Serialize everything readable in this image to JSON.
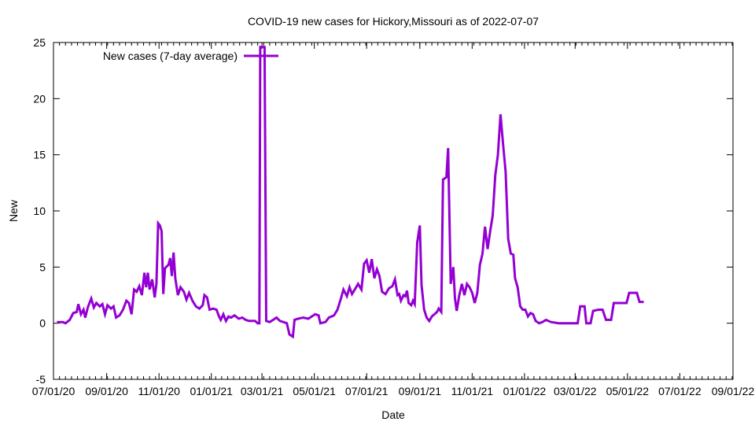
{
  "chart_data": {
    "type": "line",
    "title": "COVID-19 new cases for Hickory,Missouri as of 2022-07-07",
    "xlabel": "Date",
    "ylabel": "New",
    "xlim": [
      "2020-07-01",
      "2022-09-01"
    ],
    "ylim": [
      -5,
      25
    ],
    "x_ticks": [
      "07/01/20",
      "09/01/20",
      "11/01/20",
      "01/01/21",
      "03/01/21",
      "05/01/21",
      "07/01/21",
      "09/01/21",
      "11/01/21",
      "01/01/22",
      "03/01/22",
      "05/01/22",
      "07/01/22",
      "09/01/22"
    ],
    "y_ticks": [
      -5,
      0,
      5,
      10,
      15,
      20,
      25
    ],
    "legend_position": "top-left",
    "grid": false,
    "series": [
      {
        "name": "New cases (7-day average)",
        "color": "#9400d3",
        "points": [
          [
            "2020-07-05",
            0.1
          ],
          [
            "2020-07-12",
            0.1
          ],
          [
            "2020-07-15",
            0.0
          ],
          [
            "2020-07-20",
            0.3
          ],
          [
            "2020-07-24",
            0.9
          ],
          [
            "2020-07-28",
            1.0
          ],
          [
            "2020-07-30",
            1.7
          ],
          [
            "2020-08-02",
            0.8
          ],
          [
            "2020-08-05",
            1.2
          ],
          [
            "2020-08-07",
            0.5
          ],
          [
            "2020-08-10",
            1.4
          ],
          [
            "2020-08-14",
            2.2
          ],
          [
            "2020-08-17",
            1.4
          ],
          [
            "2020-08-20",
            1.8
          ],
          [
            "2020-08-24",
            1.5
          ],
          [
            "2020-08-27",
            1.7
          ],
          [
            "2020-08-30",
            0.8
          ],
          [
            "2020-09-02",
            1.6
          ],
          [
            "2020-09-06",
            1.3
          ],
          [
            "2020-09-09",
            1.5
          ],
          [
            "2020-09-12",
            0.5
          ],
          [
            "2020-09-16",
            0.7
          ],
          [
            "2020-09-20",
            1.2
          ],
          [
            "2020-09-24",
            2.0
          ],
          [
            "2020-09-27",
            1.8
          ],
          [
            "2020-09-30",
            0.8
          ],
          [
            "2020-10-03",
            3.0
          ],
          [
            "2020-10-06",
            2.8
          ],
          [
            "2020-10-09",
            3.3
          ],
          [
            "2020-10-12",
            2.5
          ],
          [
            "2020-10-15",
            4.5
          ],
          [
            "2020-10-17",
            3.2
          ],
          [
            "2020-10-19",
            4.5
          ],
          [
            "2020-10-21",
            3.0
          ],
          [
            "2020-10-24",
            3.9
          ],
          [
            "2020-10-27",
            2.3
          ],
          [
            "2020-10-29",
            3.5
          ],
          [
            "2020-10-31",
            8.9
          ],
          [
            "2020-11-02",
            8.7
          ],
          [
            "2020-11-04",
            8.2
          ],
          [
            "2020-11-06",
            2.6
          ],
          [
            "2020-11-08",
            4.9
          ],
          [
            "2020-11-12",
            5.2
          ],
          [
            "2020-11-14",
            5.8
          ],
          [
            "2020-11-16",
            4.2
          ],
          [
            "2020-11-18",
            6.3
          ],
          [
            "2020-11-20",
            4.0
          ],
          [
            "2020-11-23",
            2.5
          ],
          [
            "2020-11-26",
            3.2
          ],
          [
            "2020-11-30",
            2.8
          ],
          [
            "2020-12-03",
            2.1
          ],
          [
            "2020-12-06",
            2.7
          ],
          [
            "2020-12-10",
            2.0
          ],
          [
            "2020-12-14",
            1.5
          ],
          [
            "2020-12-18",
            1.3
          ],
          [
            "2020-12-22",
            1.6
          ],
          [
            "2020-12-24",
            2.5
          ],
          [
            "2020-12-27",
            2.3
          ],
          [
            "2020-12-30",
            1.2
          ],
          [
            "2021-01-03",
            1.3
          ],
          [
            "2021-01-07",
            1.2
          ],
          [
            "2021-01-10",
            0.6
          ],
          [
            "2021-01-12",
            0.3
          ],
          [
            "2021-01-15",
            0.8
          ],
          [
            "2021-01-18",
            0.2
          ],
          [
            "2021-01-21",
            0.6
          ],
          [
            "2021-01-24",
            0.5
          ],
          [
            "2021-01-28",
            0.7
          ],
          [
            "2021-02-02",
            0.4
          ],
          [
            "2021-02-06",
            0.5
          ],
          [
            "2021-02-10",
            0.3
          ],
          [
            "2021-02-14",
            0.2
          ],
          [
            "2021-02-18",
            0.2
          ],
          [
            "2021-02-21",
            0.2
          ],
          [
            "2021-02-24",
            0.0
          ],
          [
            "2021-02-26",
            0.0
          ],
          [
            "2021-02-27",
            24.6
          ],
          [
            "2021-03-04",
            24.6
          ],
          [
            "2021-03-06",
            0.2
          ],
          [
            "2021-03-10",
            0.1
          ],
          [
            "2021-03-14",
            0.3
          ],
          [
            "2021-03-18",
            0.5
          ],
          [
            "2021-03-22",
            0.2
          ],
          [
            "2021-03-26",
            0.1
          ],
          [
            "2021-03-30",
            0.0
          ],
          [
            "2021-04-02",
            -1.0
          ],
          [
            "2021-04-06",
            -1.2
          ],
          [
            "2021-04-08",
            0.3
          ],
          [
            "2021-04-12",
            0.4
          ],
          [
            "2021-04-18",
            0.5
          ],
          [
            "2021-04-24",
            0.4
          ],
          [
            "2021-05-02",
            0.8
          ],
          [
            "2021-05-06",
            0.7
          ],
          [
            "2021-05-08",
            0.0
          ],
          [
            "2021-05-14",
            0.1
          ],
          [
            "2021-05-18",
            0.5
          ],
          [
            "2021-05-24",
            0.7
          ],
          [
            "2021-05-28",
            1.2
          ],
          [
            "2021-06-01",
            2.2
          ],
          [
            "2021-06-04",
            3.0
          ],
          [
            "2021-06-08",
            2.4
          ],
          [
            "2021-06-11",
            3.2
          ],
          [
            "2021-06-14",
            2.6
          ],
          [
            "2021-06-18",
            3.1
          ],
          [
            "2021-06-21",
            3.5
          ],
          [
            "2021-06-25",
            3.0
          ],
          [
            "2021-06-28",
            5.3
          ],
          [
            "2021-07-01",
            5.6
          ],
          [
            "2021-07-04",
            4.5
          ],
          [
            "2021-07-07",
            5.7
          ],
          [
            "2021-07-10",
            4.0
          ],
          [
            "2021-07-13",
            4.8
          ],
          [
            "2021-07-16",
            4.2
          ],
          [
            "2021-07-19",
            2.8
          ],
          [
            "2021-07-23",
            2.6
          ],
          [
            "2021-07-27",
            3.1
          ],
          [
            "2021-07-31",
            3.3
          ],
          [
            "2021-08-03",
            3.9
          ],
          [
            "2021-08-06",
            2.5
          ],
          [
            "2021-08-08",
            2.6
          ],
          [
            "2021-08-10",
            2.0
          ],
          [
            "2021-08-13",
            2.5
          ],
          [
            "2021-08-15",
            2.4
          ],
          [
            "2021-08-17",
            2.9
          ],
          [
            "2021-08-19",
            1.8
          ],
          [
            "2021-08-22",
            1.6
          ],
          [
            "2021-08-24",
            2.0
          ],
          [
            "2021-08-26",
            1.7
          ],
          [
            "2021-08-29",
            7.2
          ],
          [
            "2021-09-01",
            8.7
          ],
          [
            "2021-09-03",
            3.4
          ],
          [
            "2021-09-06",
            1.2
          ],
          [
            "2021-09-09",
            0.5
          ],
          [
            "2021-09-12",
            0.2
          ],
          [
            "2021-09-15",
            0.6
          ],
          [
            "2021-09-18",
            0.8
          ],
          [
            "2021-09-21",
            1.0
          ],
          [
            "2021-09-23",
            1.3
          ],
          [
            "2021-09-26",
            1.0
          ],
          [
            "2021-09-28",
            12.8
          ],
          [
            "2021-10-02",
            13.0
          ],
          [
            "2021-10-04",
            15.6
          ],
          [
            "2021-10-07",
            3.5
          ],
          [
            "2021-10-10",
            5.0
          ],
          [
            "2021-10-12",
            2.2
          ],
          [
            "2021-10-14",
            1.1
          ],
          [
            "2021-10-17",
            2.5
          ],
          [
            "2021-10-20",
            3.5
          ],
          [
            "2021-10-23",
            2.5
          ],
          [
            "2021-10-26",
            3.5
          ],
          [
            "2021-10-29",
            3.2
          ],
          [
            "2021-11-01",
            2.7
          ],
          [
            "2021-11-04",
            1.8
          ],
          [
            "2021-11-07",
            2.7
          ],
          [
            "2021-11-10",
            5.2
          ],
          [
            "2021-11-13",
            6.2
          ],
          [
            "2021-11-16",
            8.6
          ],
          [
            "2021-11-19",
            6.6
          ],
          [
            "2021-11-22",
            8.2
          ],
          [
            "2021-11-25",
            9.6
          ],
          [
            "2021-11-28",
            13.2
          ],
          [
            "2021-12-01",
            15.0
          ],
          [
            "2021-12-04",
            18.6
          ],
          [
            "2021-12-07",
            16.0
          ],
          [
            "2021-12-10",
            13.5
          ],
          [
            "2021-12-13",
            7.5
          ],
          [
            "2021-12-16",
            6.2
          ],
          [
            "2021-12-19",
            6.1
          ],
          [
            "2021-12-21",
            4.0
          ],
          [
            "2021-12-24",
            3.2
          ],
          [
            "2021-12-27",
            1.5
          ],
          [
            "2021-12-30",
            1.2
          ],
          [
            "2022-01-02",
            1.2
          ],
          [
            "2022-01-05",
            0.6
          ],
          [
            "2022-01-08",
            0.9
          ],
          [
            "2022-01-11",
            0.8
          ],
          [
            "2022-01-14",
            0.2
          ],
          [
            "2022-01-18",
            0.0
          ],
          [
            "2022-01-22",
            0.1
          ],
          [
            "2022-01-26",
            0.3
          ],
          [
            "2022-02-01",
            0.1
          ],
          [
            "2022-02-10",
            0.0
          ],
          [
            "2022-03-04",
            0.0
          ],
          [
            "2022-03-07",
            1.5
          ],
          [
            "2022-03-12",
            1.5
          ],
          [
            "2022-03-14",
            0.0
          ],
          [
            "2022-03-19",
            0.0
          ],
          [
            "2022-03-22",
            1.1
          ],
          [
            "2022-03-28",
            1.2
          ],
          [
            "2022-04-02",
            1.2
          ],
          [
            "2022-04-06",
            0.3
          ],
          [
            "2022-04-12",
            0.3
          ],
          [
            "2022-04-15",
            1.8
          ],
          [
            "2022-04-30",
            1.8
          ],
          [
            "2022-05-03",
            2.7
          ],
          [
            "2022-05-12",
            2.7
          ],
          [
            "2022-05-15",
            1.9
          ],
          [
            "2022-05-20",
            1.9
          ]
        ]
      }
    ]
  }
}
